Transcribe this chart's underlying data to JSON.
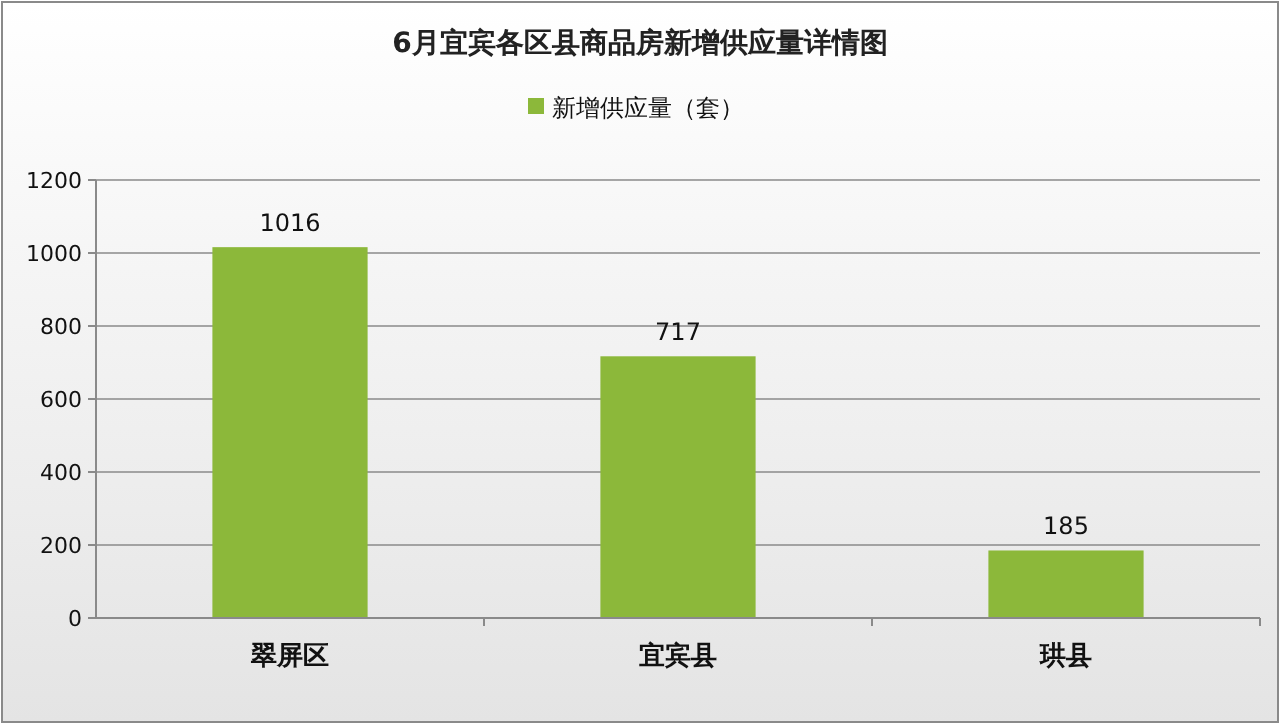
{
  "chart_data": {
    "type": "bar",
    "title": "6月宜宾各区县商品房新增供应量详情图",
    "categories": [
      "翠屏区",
      "宜宾县",
      "珙县"
    ],
    "series": [
      {
        "name": "新增供应量（套）",
        "color": "#8cb83a",
        "values": [
          1016,
          717,
          185
        ]
      }
    ],
    "ylim": [
      0,
      1200
    ],
    "yticks": [
      0,
      200,
      400,
      600,
      800,
      1000,
      1200
    ],
    "grid": "y",
    "legend": "top",
    "data_labels": true
  }
}
